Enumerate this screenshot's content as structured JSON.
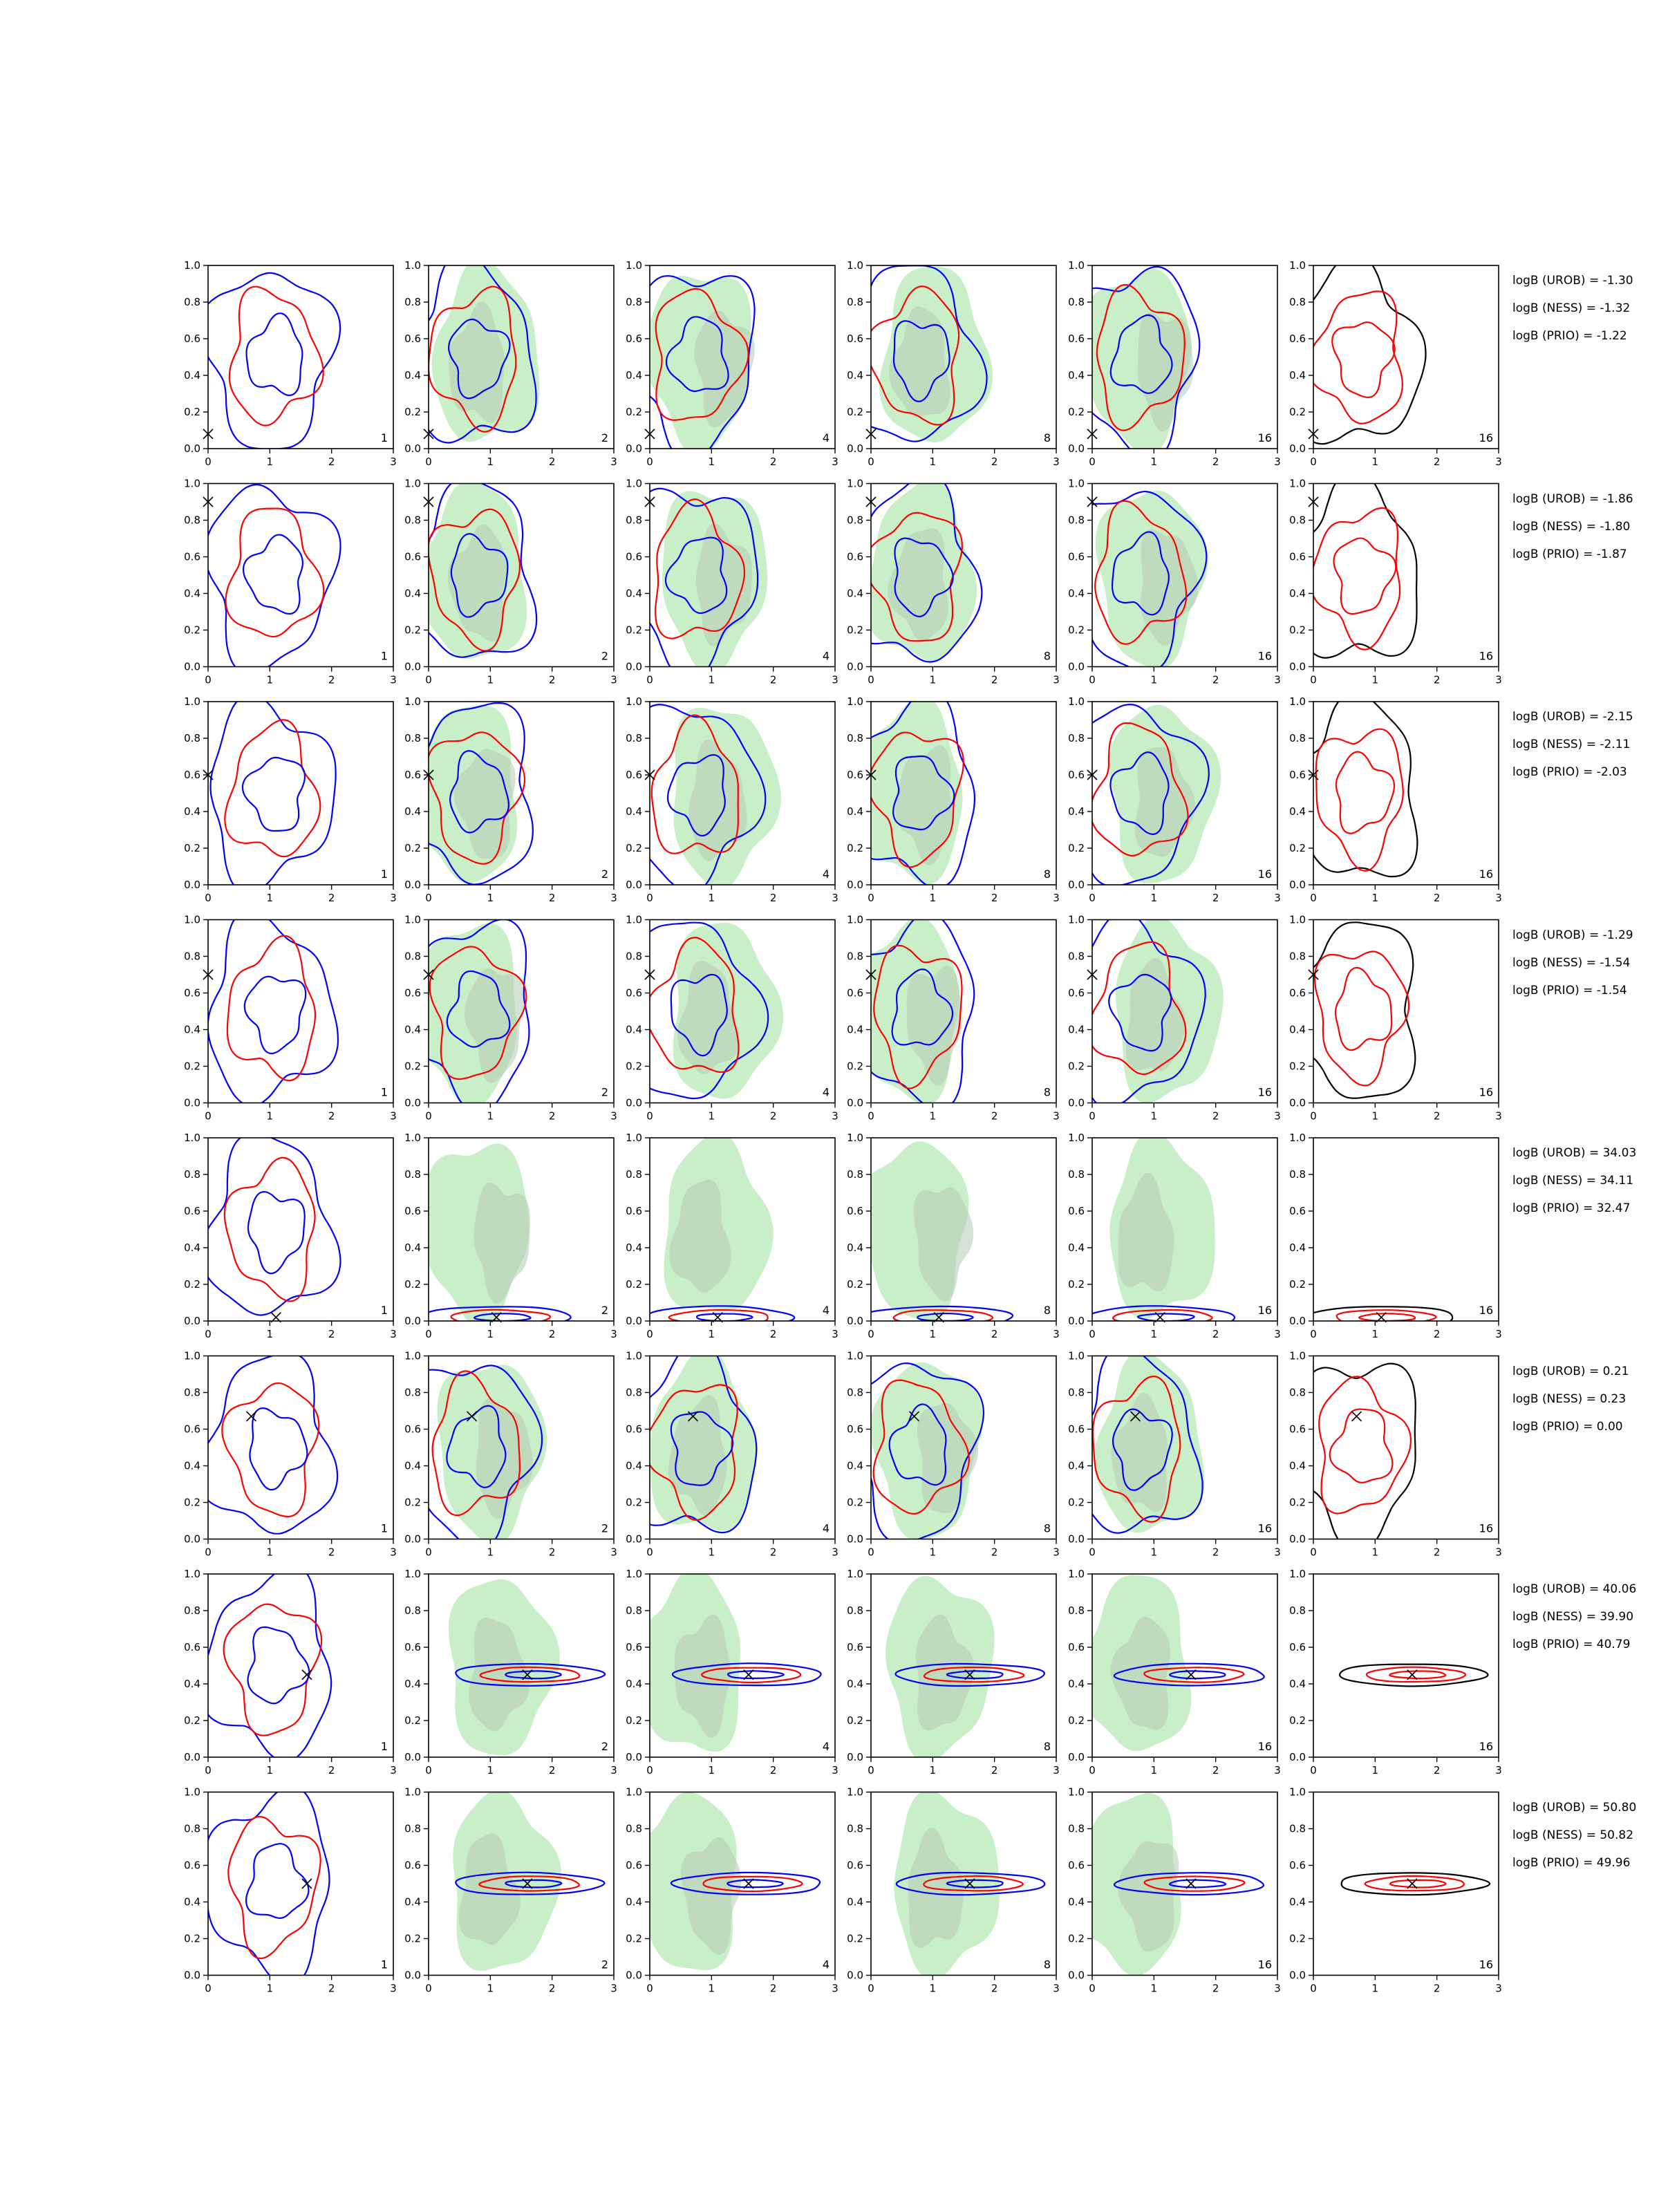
{
  "figure": {
    "columns": [
      {
        "col": 1,
        "number": "1",
        "filled_background": false
      },
      {
        "col": 2,
        "number": "2",
        "filled_background": true
      },
      {
        "col": 3,
        "number": "4",
        "filled_background": true
      },
      {
        "col": 4,
        "number": "8",
        "filled_background": true
      },
      {
        "col": 5,
        "number": "16",
        "filled_background": true
      },
      {
        "col": 6,
        "number": "16",
        "filled_background": false
      }
    ],
    "colors": {
      "blue_contours": "#0000ff",
      "red_contours": "#ff0000",
      "black_contours": "#000000",
      "filled_outer": "#c9efc9",
      "filled_inner": "#b4cbb4",
      "marker": "#000000"
    }
  },
  "chart_data": [
    {
      "type": "contour",
      "row": 1,
      "xlim": [
        0,
        3
      ],
      "ylim": [
        0.0,
        1.0
      ],
      "xticks": [
        "0",
        "1",
        "2",
        "3"
      ],
      "yticks": [
        "0.0",
        "0.2",
        "0.4",
        "0.6",
        "0.8",
        "1.0"
      ],
      "truth": {
        "x": 0.0,
        "y": 0.08
      },
      "annotations": [
        "logB (UROB) = -1.30",
        "logB (NESS) = -1.32",
        "logB (PRIO) = -1.22"
      ]
    },
    {
      "type": "contour",
      "row": 2,
      "xlim": [
        0,
        3
      ],
      "ylim": [
        0.0,
        1.0
      ],
      "xticks": [
        "0",
        "1",
        "2",
        "3"
      ],
      "yticks": [
        "0.0",
        "0.2",
        "0.4",
        "0.6",
        "0.8",
        "1.0"
      ],
      "truth": {
        "x": 0.0,
        "y": 0.9
      },
      "annotations": [
        "logB (UROB) = -1.86",
        "logB (NESS) = -1.80",
        "logB (PRIO) = -1.87"
      ]
    },
    {
      "type": "contour",
      "row": 3,
      "xlim": [
        0,
        3
      ],
      "ylim": [
        0.0,
        1.0
      ],
      "xticks": [
        "0",
        "1",
        "2",
        "3"
      ],
      "yticks": [
        "0.0",
        "0.2",
        "0.4",
        "0.6",
        "0.8",
        "1.0"
      ],
      "truth": {
        "x": 0.0,
        "y": 0.6
      },
      "annotations": [
        "logB (UROB) = -2.15",
        "logB (NESS) = -2.11",
        "logB (PRIO) = -2.03"
      ]
    },
    {
      "type": "contour",
      "row": 4,
      "xlim": [
        0,
        3
      ],
      "ylim": [
        0.0,
        1.0
      ],
      "xticks": [
        "0",
        "1",
        "2",
        "3"
      ],
      "yticks": [
        "0.0",
        "0.2",
        "0.4",
        "0.6",
        "0.8",
        "1.0"
      ],
      "truth": {
        "x": 0.0,
        "y": 0.7
      },
      "annotations": [
        "logB (UROB) = -1.29",
        "logB (NESS) = -1.54",
        "logB (PRIO) = -1.54"
      ]
    },
    {
      "type": "contour",
      "row": 5,
      "xlim": [
        0,
        3
      ],
      "ylim": [
        0.0,
        1.0
      ],
      "xticks": [
        "0",
        "1",
        "2",
        "3"
      ],
      "yticks": [
        "0.0",
        "0.2",
        "0.4",
        "0.6",
        "0.8",
        "1.0"
      ],
      "truth": {
        "x": 1.1,
        "y": 0.02
      },
      "annotations": [
        "logB (UROB) = 34.03",
        "logB (NESS) = 34.11",
        "logB (PRIO) = 32.47"
      ]
    },
    {
      "type": "contour",
      "row": 6,
      "xlim": [
        0,
        3
      ],
      "ylim": [
        0.0,
        1.0
      ],
      "xticks": [
        "0",
        "1",
        "2",
        "3"
      ],
      "yticks": [
        "0.0",
        "0.2",
        "0.4",
        "0.6",
        "0.8",
        "1.0"
      ],
      "truth": {
        "x": 0.7,
        "y": 0.67
      },
      "annotations": [
        "logB (UROB) = 0.21",
        "logB (NESS) = 0.23",
        "logB (PRIO) = 0.00"
      ]
    },
    {
      "type": "contour",
      "row": 7,
      "xlim": [
        0,
        3
      ],
      "ylim": [
        0.0,
        1.0
      ],
      "xticks": [
        "0",
        "1",
        "2",
        "3"
      ],
      "yticks": [
        "0.0",
        "0.2",
        "0.4",
        "0.6",
        "0.8",
        "1.0"
      ],
      "truth": {
        "x": 1.6,
        "y": 0.45
      },
      "annotations": [
        "logB (UROB) = 40.06",
        "logB (NESS) = 39.90",
        "logB (PRIO) = 40.79"
      ]
    },
    {
      "type": "contour",
      "row": 8,
      "xlim": [
        0,
        3
      ],
      "ylim": [
        0.0,
        1.0
      ],
      "xticks": [
        "0",
        "1",
        "2",
        "3"
      ],
      "yticks": [
        "0.0",
        "0.2",
        "0.4",
        "0.6",
        "0.8",
        "1.0"
      ],
      "truth": {
        "x": 1.6,
        "y": 0.5
      },
      "annotations": [
        "logB (UROB) = 50.80",
        "logB (NESS) = 50.82",
        "logB (PRIO) = 49.96"
      ]
    }
  ]
}
